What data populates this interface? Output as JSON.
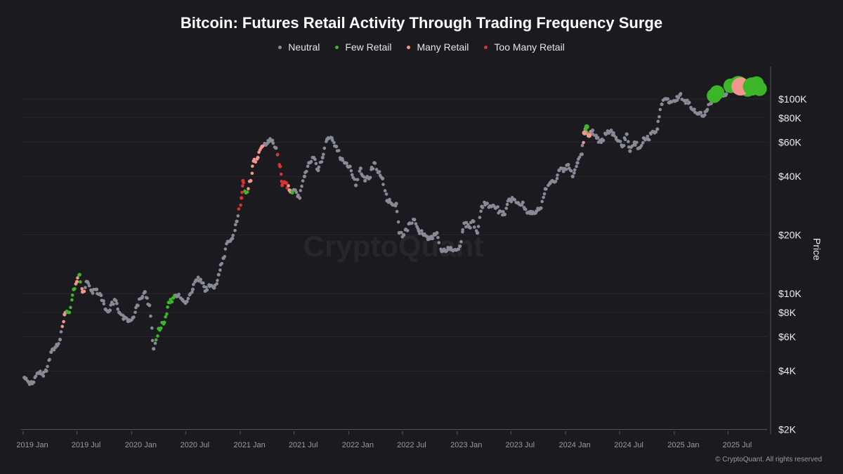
{
  "chart_data": {
    "type": "scatter",
    "title": "Bitcoin: Futures Retail Activity Through Trading Frequency Surge",
    "ylabel": "Price",
    "yscale": "log",
    "ylim": [
      2000,
      130000
    ],
    "xlim": [
      "2018-12-25",
      "2025-10-25"
    ],
    "legend_position": "top-center",
    "legend": [
      {
        "code": "N",
        "label": "Neutral",
        "color": "#8a8a96"
      },
      {
        "code": "F",
        "label": "Few Retail",
        "color": "#3cb528"
      },
      {
        "code": "M",
        "label": "Many Retail",
        "color": "#f0968a"
      },
      {
        "code": "T",
        "label": "Too Many Retail",
        "color": "#d83232"
      }
    ],
    "y_ticks": [
      {
        "v": 100000,
        "label": "$100K"
      },
      {
        "v": 80000,
        "label": "$80K"
      },
      {
        "v": 60000,
        "label": "$60K"
      },
      {
        "v": 40000,
        "label": "$40K"
      },
      {
        "v": 20000,
        "label": "$20K"
      },
      {
        "v": 10000,
        "label": "$10K"
      },
      {
        "v": 8000,
        "label": "$8K"
      },
      {
        "v": 6000,
        "label": "$6K"
      },
      {
        "v": 4000,
        "label": "$4K"
      },
      {
        "v": 2000,
        "label": "$2K"
      }
    ],
    "x_ticks": [
      {
        "d": "2019-01-01",
        "label": "2019 Jan"
      },
      {
        "d": "2019-07-01",
        "label": "2019 Jul"
      },
      {
        "d": "2020-01-01",
        "label": "2020 Jan"
      },
      {
        "d": "2020-07-01",
        "label": "2020 Jul"
      },
      {
        "d": "2021-01-01",
        "label": "2021 Jan"
      },
      {
        "d": "2021-07-01",
        "label": "2021 Jul"
      },
      {
        "d": "2022-01-01",
        "label": "2022 Jan"
      },
      {
        "d": "2022-07-01",
        "label": "2022 Jul"
      },
      {
        "d": "2023-01-01",
        "label": "2023 Jan"
      },
      {
        "d": "2023-07-01",
        "label": "2023 Jul"
      },
      {
        "d": "2024-01-01",
        "label": "2024 Jan"
      },
      {
        "d": "2024-07-01",
        "label": "2024 Jul"
      },
      {
        "d": "2025-01-01",
        "label": "2025 Jan"
      },
      {
        "d": "2025-07-01",
        "label": "2025 Jul"
      }
    ],
    "points_columns": [
      "date",
      "price_usd_k",
      "category",
      "marker_scale"
    ],
    "points": [
      [
        "2019-01-05",
        3.7,
        "N",
        1
      ],
      [
        "2019-01-20",
        3.5,
        "N",
        1
      ],
      [
        "2019-02-05",
        3.5,
        "N",
        1
      ],
      [
        "2019-02-20",
        3.9,
        "N",
        1
      ],
      [
        "2019-03-05",
        3.85,
        "N",
        1
      ],
      [
        "2019-03-20",
        4.0,
        "N",
        1
      ],
      [
        "2019-04-05",
        5.0,
        "N",
        1
      ],
      [
        "2019-04-20",
        5.3,
        "N",
        1
      ],
      [
        "2019-05-05",
        5.8,
        "N",
        1
      ],
      [
        "2019-05-20",
        7.8,
        "M",
        1
      ],
      [
        "2019-06-05",
        8.0,
        "F",
        1
      ],
      [
        "2019-06-20",
        10.5,
        "F",
        1
      ],
      [
        "2019-07-01",
        11.5,
        "M",
        1
      ],
      [
        "2019-07-10",
        12.5,
        "F",
        1
      ],
      [
        "2019-07-20",
        10.2,
        "M",
        1
      ],
      [
        "2019-08-05",
        11.5,
        "N",
        1
      ],
      [
        "2019-08-20",
        10.3,
        "N",
        1
      ],
      [
        "2019-09-05",
        10.5,
        "N",
        1
      ],
      [
        "2019-09-20",
        9.8,
        "N",
        1
      ],
      [
        "2019-10-05",
        8.3,
        "N",
        1
      ],
      [
        "2019-10-20",
        8.2,
        "N",
        1
      ],
      [
        "2019-11-05",
        9.3,
        "N",
        1
      ],
      [
        "2019-11-20",
        8.0,
        "N",
        1
      ],
      [
        "2019-12-05",
        7.4,
        "N",
        1
      ],
      [
        "2019-12-20",
        7.2,
        "N",
        1
      ],
      [
        "2020-01-05",
        7.5,
        "N",
        1
      ],
      [
        "2020-01-20",
        8.7,
        "N",
        1
      ],
      [
        "2020-02-05",
        9.5,
        "N",
        1
      ],
      [
        "2020-02-15",
        10.2,
        "N",
        1
      ],
      [
        "2020-03-01",
        8.7,
        "N",
        1
      ],
      [
        "2020-03-15",
        5.2,
        "N",
        1
      ],
      [
        "2020-04-01",
        6.6,
        "F",
        1
      ],
      [
        "2020-04-20",
        7.1,
        "F",
        1
      ],
      [
        "2020-05-05",
        9.0,
        "F",
        1
      ],
      [
        "2020-05-20",
        9.5,
        "F",
        1
      ],
      [
        "2020-06-05",
        9.7,
        "N",
        1
      ],
      [
        "2020-06-20",
        9.3,
        "N",
        1
      ],
      [
        "2020-07-05",
        9.1,
        "N",
        1
      ],
      [
        "2020-07-25",
        10.5,
        "N",
        1
      ],
      [
        "2020-08-05",
        11.7,
        "N",
        1
      ],
      [
        "2020-08-20",
        11.8,
        "N",
        1
      ],
      [
        "2020-09-05",
        10.3,
        "N",
        1
      ],
      [
        "2020-09-20",
        10.9,
        "N",
        1
      ],
      [
        "2020-10-05",
        10.7,
        "N",
        1
      ],
      [
        "2020-10-20",
        12.5,
        "N",
        1
      ],
      [
        "2020-11-05",
        15.2,
        "N",
        1
      ],
      [
        "2020-11-20",
        18.5,
        "N",
        1
      ],
      [
        "2020-12-05",
        19.2,
        "N",
        1
      ],
      [
        "2020-12-20",
        23.5,
        "N",
        1
      ],
      [
        "2021-01-05",
        31,
        "T",
        1
      ],
      [
        "2021-01-10",
        38,
        "T",
        1
      ],
      [
        "2021-01-20",
        33,
        "F",
        1
      ],
      [
        "2021-02-05",
        38,
        "M",
        1
      ],
      [
        "2021-02-15",
        48,
        "M",
        1
      ],
      [
        "2021-03-01",
        50,
        "M",
        1
      ],
      [
        "2021-03-15",
        57,
        "M",
        1
      ],
      [
        "2021-04-01",
        59,
        "N",
        1
      ],
      [
        "2021-04-15",
        61,
        "N",
        1
      ],
      [
        "2021-05-01",
        56,
        "N",
        1
      ],
      [
        "2021-05-15",
        45,
        "T",
        1
      ],
      [
        "2021-05-22",
        36,
        "T",
        1
      ],
      [
        "2021-06-05",
        37,
        "T",
        1
      ],
      [
        "2021-06-15",
        34,
        "M",
        1
      ],
      [
        "2021-06-25",
        33,
        "F",
        1
      ],
      [
        "2021-07-05",
        34,
        "N",
        1
      ],
      [
        "2021-07-20",
        31,
        "N",
        1
      ],
      [
        "2021-08-05",
        40,
        "N",
        1
      ],
      [
        "2021-08-20",
        47,
        "N",
        1
      ],
      [
        "2021-09-05",
        50,
        "N",
        1
      ],
      [
        "2021-09-20",
        43,
        "N",
        1
      ],
      [
        "2021-10-05",
        50,
        "N",
        1
      ],
      [
        "2021-10-20",
        62,
        "N",
        1
      ],
      [
        "2021-11-05",
        63,
        "N",
        1
      ],
      [
        "2021-11-20",
        57,
        "N",
        1
      ],
      [
        "2021-12-05",
        49,
        "N",
        1
      ],
      [
        "2021-12-20",
        47,
        "N",
        1
      ],
      [
        "2022-01-05",
        45,
        "N",
        1
      ],
      [
        "2022-01-25",
        36,
        "N",
        1
      ],
      [
        "2022-02-10",
        44,
        "N",
        1
      ],
      [
        "2022-02-25",
        38,
        "N",
        1
      ],
      [
        "2022-03-10",
        39,
        "N",
        1
      ],
      [
        "2022-03-28",
        47,
        "N",
        1
      ],
      [
        "2022-04-10",
        42,
        "N",
        1
      ],
      [
        "2022-04-25",
        39,
        "N",
        1
      ],
      [
        "2022-05-10",
        30,
        "N",
        1
      ],
      [
        "2022-05-25",
        29,
        "N",
        1
      ],
      [
        "2022-06-10",
        29,
        "N",
        1
      ],
      [
        "2022-06-20",
        20.5,
        "N",
        1
      ],
      [
        "2022-07-05",
        20,
        "N",
        1
      ],
      [
        "2022-07-25",
        23,
        "N",
        1
      ],
      [
        "2022-08-10",
        24,
        "N",
        1
      ],
      [
        "2022-08-25",
        21,
        "N",
        1
      ],
      [
        "2022-09-10",
        20,
        "N",
        1
      ],
      [
        "2022-09-25",
        19,
        "N",
        1
      ],
      [
        "2022-10-10",
        19.2,
        "N",
        1
      ],
      [
        "2022-10-25",
        20.5,
        "N",
        1
      ],
      [
        "2022-11-10",
        16.5,
        "N",
        1
      ],
      [
        "2022-11-25",
        16.5,
        "N",
        1
      ],
      [
        "2022-12-10",
        17.2,
        "N",
        1
      ],
      [
        "2022-12-25",
        16.8,
        "N",
        1
      ],
      [
        "2023-01-10",
        17.5,
        "N",
        1
      ],
      [
        "2023-01-25",
        23,
        "N",
        1
      ],
      [
        "2023-02-10",
        22,
        "N",
        1
      ],
      [
        "2023-02-25",
        23.5,
        "N",
        1
      ],
      [
        "2023-03-10",
        20.5,
        "N",
        1
      ],
      [
        "2023-03-25",
        28,
        "N",
        1
      ],
      [
        "2023-04-10",
        29,
        "N",
        1
      ],
      [
        "2023-04-25",
        28,
        "N",
        1
      ],
      [
        "2023-05-10",
        27.5,
        "N",
        1
      ],
      [
        "2023-05-25",
        26.5,
        "N",
        1
      ],
      [
        "2023-06-10",
        25.5,
        "N",
        1
      ],
      [
        "2023-06-25",
        30.5,
        "N",
        1
      ],
      [
        "2023-07-10",
        30.5,
        "N",
        1
      ],
      [
        "2023-07-25",
        29.3,
        "N",
        1
      ],
      [
        "2023-08-10",
        29.4,
        "N",
        1
      ],
      [
        "2023-08-25",
        26,
        "N",
        1
      ],
      [
        "2023-09-10",
        25.8,
        "N",
        1
      ],
      [
        "2023-09-25",
        26.5,
        "N",
        1
      ],
      [
        "2023-10-10",
        27.5,
        "N",
        1
      ],
      [
        "2023-10-25",
        34.5,
        "N",
        1
      ],
      [
        "2023-11-10",
        37,
        "N",
        1
      ],
      [
        "2023-11-25",
        37.5,
        "N",
        1
      ],
      [
        "2023-12-10",
        43,
        "N",
        1
      ],
      [
        "2023-12-25",
        42.5,
        "N",
        1
      ],
      [
        "2024-01-10",
        46,
        "N",
        1
      ],
      [
        "2024-01-25",
        40,
        "N",
        1
      ],
      [
        "2024-02-10",
        47,
        "N",
        1
      ],
      [
        "2024-02-25",
        52,
        "N",
        1
      ],
      [
        "2024-03-05",
        67,
        "M",
        1.4
      ],
      [
        "2024-03-12",
        72,
        "F",
        1.4
      ],
      [
        "2024-03-20",
        65,
        "M",
        1.4
      ],
      [
        "2024-04-01",
        69,
        "N",
        1
      ],
      [
        "2024-04-15",
        63,
        "N",
        1
      ],
      [
        "2024-04-30",
        60,
        "N",
        1
      ],
      [
        "2024-05-15",
        66,
        "N",
        1
      ],
      [
        "2024-05-30",
        68,
        "N",
        1
      ],
      [
        "2024-06-10",
        67,
        "N",
        1
      ],
      [
        "2024-06-25",
        61,
        "N",
        1
      ],
      [
        "2024-07-10",
        57,
        "N",
        1
      ],
      [
        "2024-07-25",
        66,
        "N",
        1
      ],
      [
        "2024-08-05",
        54,
        "N",
        1
      ],
      [
        "2024-08-20",
        60,
        "N",
        1
      ],
      [
        "2024-09-05",
        56,
        "N",
        1
      ],
      [
        "2024-09-20",
        63,
        "N",
        1
      ],
      [
        "2024-10-05",
        62,
        "N",
        1
      ],
      [
        "2024-10-20",
        68,
        "N",
        1
      ],
      [
        "2024-11-05",
        70,
        "N",
        1
      ],
      [
        "2024-11-20",
        94,
        "N",
        1
      ],
      [
        "2024-12-05",
        100,
        "N",
        1
      ],
      [
        "2024-12-20",
        97,
        "N",
        1
      ],
      [
        "2025-01-05",
        98,
        "N",
        1
      ],
      [
        "2025-01-20",
        105,
        "N",
        1
      ],
      [
        "2025-02-05",
        98,
        "N",
        1
      ],
      [
        "2025-02-20",
        96,
        "N",
        1
      ],
      [
        "2025-03-05",
        88,
        "N",
        1
      ],
      [
        "2025-03-20",
        84,
        "N",
        1
      ],
      [
        "2025-04-05",
        82,
        "N",
        1
      ],
      [
        "2025-04-20",
        87,
        "N",
        1
      ],
      [
        "2025-05-05",
        95,
        "N",
        1
      ],
      [
        "2025-05-15",
        104,
        "F",
        4
      ],
      [
        "2025-05-25",
        108,
        "F",
        4
      ],
      [
        "2025-06-10",
        106,
        "N",
        1
      ],
      [
        "2025-06-25",
        106,
        "N",
        1
      ],
      [
        "2025-07-10",
        117,
        "F",
        4
      ],
      [
        "2025-07-25",
        118,
        "F",
        4
      ],
      [
        "2025-08-05",
        118,
        "F",
        5
      ],
      [
        "2025-08-12",
        116,
        "M",
        5
      ],
      [
        "2025-09-05",
        112,
        "F",
        4
      ],
      [
        "2025-09-20",
        116,
        "F",
        5
      ],
      [
        "2025-10-05",
        120,
        "F",
        4
      ],
      [
        "2025-10-15",
        113,
        "F",
        4
      ]
    ]
  },
  "watermark": "CryptoQuant",
  "footer": "© CryptoQuant. All rights reserved"
}
